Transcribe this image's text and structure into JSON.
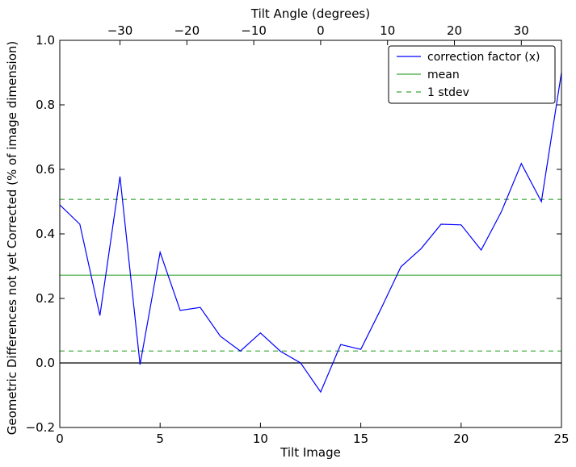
{
  "chart_data": {
    "type": "line",
    "xlabel": "Tilt Image",
    "ylabel": "Geometric Differences not yet Corrected (% of image dimension)",
    "top_xlabel": "Tilt Angle (degrees)",
    "xlim": [
      0,
      25
    ],
    "ylim": [
      -0.2,
      1.0
    ],
    "x_ticks": [
      0,
      5,
      10,
      15,
      20,
      25
    ],
    "x_tick_labels": [
      "0",
      "5",
      "10",
      "15",
      "20",
      "25"
    ],
    "y_ticks": [
      -0.2,
      0.0,
      0.2,
      0.4,
      0.6,
      0.8,
      1.0
    ],
    "y_tick_labels": [
      "−0.2",
      "0.0",
      "0.2",
      "0.4",
      "0.6",
      "0.8",
      "1.0"
    ],
    "top_axis": {
      "ticks": [
        -30,
        -20,
        -10,
        0,
        10,
        20,
        30
      ],
      "tick_labels": [
        "−30",
        "−20",
        "−10",
        "0",
        "10",
        "20",
        "30"
      ],
      "range": [
        -39,
        36
      ]
    },
    "grid": false,
    "legend_position": "top-right",
    "x": [
      0,
      1,
      2,
      3,
      4,
      5,
      6,
      7,
      8,
      9,
      10,
      11,
      12,
      13,
      14,
      15,
      16,
      17,
      18,
      19,
      20,
      21,
      22,
      23,
      24,
      25
    ],
    "series": [
      {
        "name": "correction factor (x)",
        "color": "#0000ff",
        "style": "solid",
        "values": [
          0.49,
          0.43,
          0.147,
          0.578,
          -0.005,
          0.343,
          0.163,
          0.172,
          0.083,
          0.037,
          0.093,
          0.036,
          0.0,
          -0.09,
          0.057,
          0.042,
          0.167,
          0.298,
          0.354,
          0.43,
          0.428,
          0.35,
          0.468,
          0.618,
          0.5,
          0.9
        ]
      },
      {
        "name": "mean",
        "color": "#3aa635",
        "style": "solid",
        "value": 0.272
      },
      {
        "name": "1 stdev",
        "color": "#3aa635",
        "style": "dashed",
        "values_pair": [
          0.037,
          0.507
        ]
      }
    ],
    "reference_line": {
      "y": 0.0,
      "color": "#000000"
    }
  }
}
